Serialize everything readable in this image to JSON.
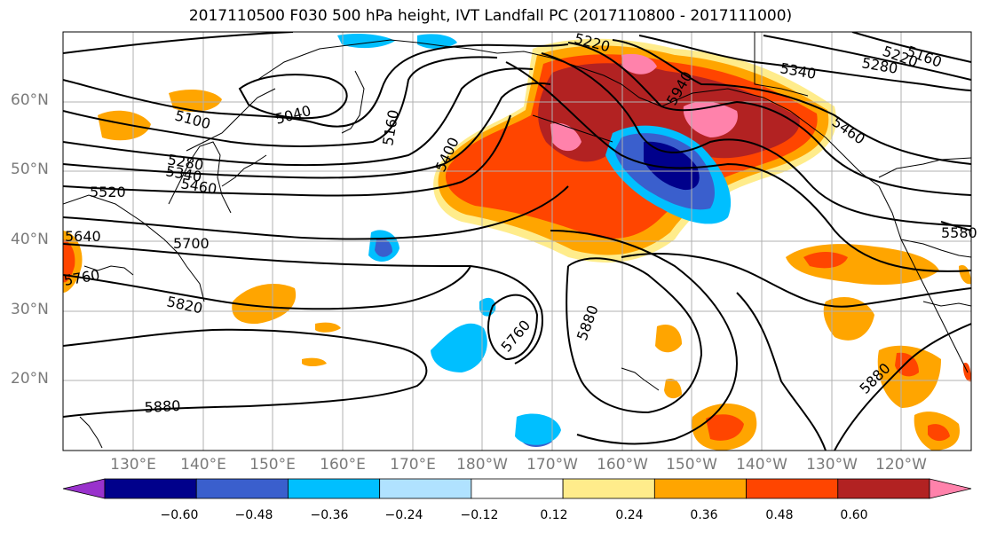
{
  "title": "2017110500 F030 500 hPa height, IVT Landfall PC (2017110800 - 2017111000)",
  "lat_labels": [
    "60°N",
    "50°N",
    "40°N",
    "30°N",
    "20°N"
  ],
  "lon_labels": [
    "130°E",
    "140°E",
    "150°E",
    "160°E",
    "170°E",
    "180°W",
    "170°W",
    "160°W",
    "150°W",
    "140°W",
    "130°W",
    "120°W"
  ],
  "contour_labels": [
    "5160",
    "5220",
    "5280",
    "5340",
    "5460",
    "5220",
    "5100",
    "5040",
    "5160",
    "5400",
    "5280",
    "5340",
    "5460",
    "5520",
    "5700",
    "5760",
    "5820",
    "5640",
    "5760",
    "5880",
    "5880",
    "5880",
    "5580",
    "5940"
  ],
  "colorbar": {
    "ticks": [
      "−0.60",
      "−0.48",
      "−0.36",
      "−0.24",
      "−0.12",
      "0.12",
      "0.24",
      "0.36",
      "0.48",
      "0.60"
    ],
    "colors": [
      "#9932cc",
      "#00008b",
      "#3a5fcd",
      "#00bfff",
      "#b0e2ff",
      "#ffffff",
      "#ffec8b",
      "#ffa500",
      "#ff4500",
      "#b22222",
      "#ff82ab"
    ]
  }
}
